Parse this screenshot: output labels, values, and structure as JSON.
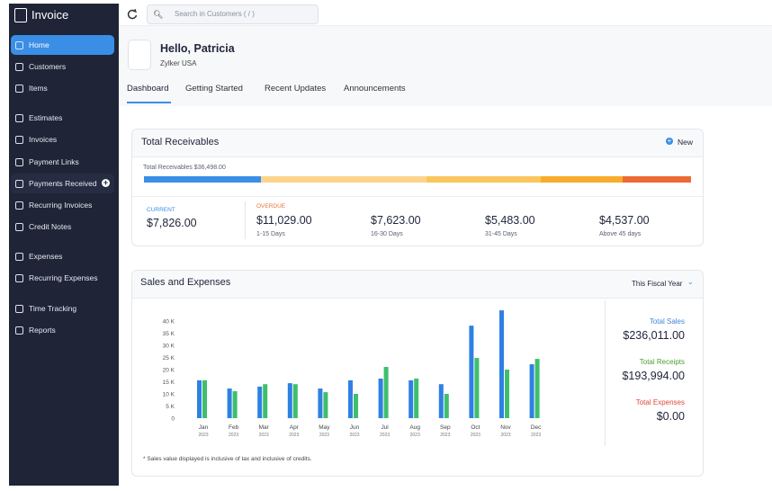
{
  "app": {
    "name": "Invoice"
  },
  "nav": [
    "Home",
    "Customers",
    "Items",
    "Estimates",
    "Invoices",
    "Payment Links",
    "Payments Received",
    "Recurring Invoices",
    "Credit Notes",
    "Expenses",
    "Recurring Expenses",
    "Time Tracking",
    "Reports"
  ],
  "search_placeholder": "Search in Customers ( / )",
  "header": {
    "greeting": "Hello, Patricia",
    "org": "Zylker USA"
  },
  "tabs": [
    "Dashboard",
    "Getting Started",
    "Recent Updates",
    "Announcements"
  ],
  "receivables": {
    "title": "Total Receivables",
    "new_label": "New",
    "total_label": "Total Receivables $36,498.00",
    "current": {
      "label": "CURRENT",
      "value": 7826,
      "value_label": "$7,826.00",
      "color": "#3a8ee6"
    },
    "overdue_label": "OVERDUE",
    "overdue": [
      {
        "value": 11029,
        "value_label": "$11,029.00",
        "range": "1-15 Days",
        "color": "#fdd48c"
      },
      {
        "value": 7623,
        "value_label": "$7,623.00",
        "range": "16-30 Days",
        "color": "#fbc65d"
      },
      {
        "value": 5483,
        "value_label": "$5,483.00",
        "range": "31-45 Days",
        "color": "#f8ac2c"
      },
      {
        "value": 4537,
        "value_label": "$4,537.00",
        "range": "Above 45 days",
        "color": "#ee6a35"
      }
    ]
  },
  "chart_data": {
    "type": "bar",
    "title": "Sales and Expenses",
    "period": "This Fiscal Year",
    "categories": [
      "Jan",
      "Feb",
      "Mar",
      "Apr",
      "May",
      "Jun",
      "Jul",
      "Aug",
      "Sep",
      "Oct",
      "Nov",
      "Dec"
    ],
    "category_sublabels": [
      "2023",
      "2023",
      "2023",
      "2023",
      "2023",
      "2023",
      "2023",
      "2023",
      "2023",
      "2023",
      "2023",
      "2023"
    ],
    "series": [
      {
        "name": "Total Sales",
        "color": "#2f80e4",
        "label_color": "#3f86d8",
        "total": "$236,011.00",
        "values": [
          15.6,
          12.2,
          13,
          14.4,
          12.2,
          15.6,
          16.3,
          15.6,
          14,
          38.1,
          44.4,
          22.2
        ]
      },
      {
        "name": "Total Receipts",
        "color": "#3ebf6e",
        "label_color": "#4a9e2f",
        "total": "$193,994.00",
        "values": [
          15.6,
          11.1,
          14,
          14,
          10.7,
          10,
          21.1,
          16.3,
          10,
          24.8,
          20,
          24.4
        ]
      }
    ],
    "other_totals": [
      {
        "name": "Total Expenses",
        "total": "$0.00",
        "label_color": "#e0473b"
      }
    ],
    "ylim": [
      0,
      45
    ],
    "yticks": [
      0,
      {
        "value": 5,
        "label": "5 K"
      },
      {
        "value": 10,
        "label": "10 K"
      },
      {
        "value": 15,
        "label": "15 K"
      },
      {
        "value": 20,
        "label": "20 K"
      },
      {
        "value": 25,
        "label": "25 K"
      },
      {
        "value": 30,
        "label": "30 K"
      },
      {
        "value": 35,
        "label": "35 K"
      },
      {
        "value": 40,
        "label": "40 K"
      }
    ],
    "grid": false,
    "note": "* Sales value displayed is inclusive of tax and inclusive of credits."
  }
}
